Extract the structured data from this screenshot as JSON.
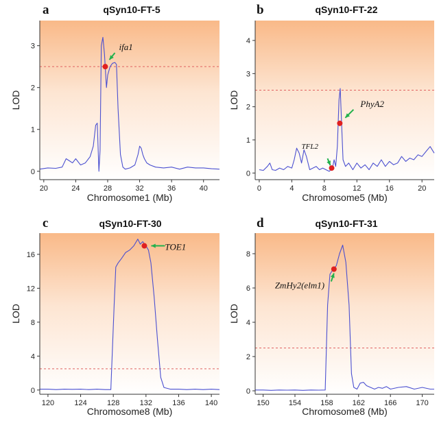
{
  "chart_data": [
    {
      "type": "line",
      "letter": "a",
      "title": "qSyn10-FT-5",
      "xlabel": "Chromosome1 (Mb)",
      "ylabel": "LOD",
      "xlim": [
        19.5,
        42
      ],
      "ylim": [
        -0.2,
        3.6
      ],
      "xticks": [
        20,
        24,
        28,
        32,
        36,
        40
      ],
      "yticks": [
        0,
        1,
        2,
        3
      ],
      "threshold": 2.5,
      "x": [
        19.5,
        20.5,
        21.5,
        22.3,
        22.8,
        23.2,
        23.6,
        24,
        24.6,
        25.2,
        25.8,
        26.2,
        26.5,
        26.7,
        26.9,
        27.05,
        27.2,
        27.4,
        27.6,
        27.75,
        27.85,
        28,
        28.3,
        28.6,
        28.9,
        29.1,
        29.3,
        29.6,
        29.9,
        30.2,
        30.8,
        31.4,
        31.8,
        32,
        32.2,
        32.4,
        32.6,
        32.9,
        33.3,
        34,
        35,
        36,
        37,
        38,
        39,
        40,
        41,
        42
      ],
      "y": [
        0.05,
        0.08,
        0.07,
        0.1,
        0.3,
        0.25,
        0.2,
        0.3,
        0.15,
        0.2,
        0.35,
        0.6,
        1.1,
        1.15,
        0,
        0.5,
        3.0,
        3.2,
        2.8,
        2.3,
        2.0,
        2.3,
        2.5,
        2.58,
        2.6,
        2.55,
        1.5,
        0.4,
        0.1,
        0.05,
        0.08,
        0.15,
        0.4,
        0.6,
        0.55,
        0.4,
        0.3,
        0.2,
        0.15,
        0.1,
        0.08,
        0.1,
        0.05,
        0.1,
        0.08,
        0.08,
        0.06,
        0.05
      ],
      "markers": [
        {
          "label": "ifa1",
          "x": 27.7,
          "y": 2.5
        }
      ]
    },
    {
      "type": "line",
      "letter": "b",
      "title": "qSyn10-FT-22",
      "xlabel": "Chromosome5 (Mb)",
      "ylabel": "LOD",
      "xlim": [
        -0.5,
        21.5
      ],
      "ylim": [
        -0.2,
        4.6
      ],
      "xticks": [
        0,
        4,
        8,
        12,
        16,
        20
      ],
      "yticks": [
        0,
        1,
        2,
        3,
        4
      ],
      "threshold": 2.5,
      "x": [
        0,
        0.5,
        1,
        1.3,
        1.6,
        2,
        2.5,
        3,
        3.5,
        4,
        4.3,
        4.6,
        4.9,
        5.2,
        5.5,
        5.8,
        6.2,
        6.6,
        7,
        7.4,
        7.8,
        8.2,
        8.6,
        9,
        9.2,
        9.4,
        9.6,
        9.8,
        9.95,
        10.1,
        10.3,
        10.6,
        11,
        11.5,
        12,
        12.5,
        13,
        13.5,
        14,
        14.5,
        15,
        15.5,
        16,
        16.5,
        17,
        17.5,
        18,
        18.5,
        19,
        19.5,
        20,
        20.5,
        21,
        21.5
      ],
      "y": [
        0.1,
        0.08,
        0.2,
        0.3,
        0.1,
        0.08,
        0.15,
        0.1,
        0.2,
        0.15,
        0.4,
        0.75,
        0.6,
        0.3,
        0.7,
        0.5,
        0.1,
        0.15,
        0.2,
        0.1,
        0.15,
        0.1,
        0.05,
        0.15,
        0.4,
        0.2,
        0.8,
        2.2,
        2.55,
        1.6,
        0.4,
        0.2,
        0.3,
        0.1,
        0.3,
        0.15,
        0.25,
        0.1,
        0.3,
        0.2,
        0.4,
        0.2,
        0.35,
        0.25,
        0.3,
        0.5,
        0.35,
        0.45,
        0.4,
        0.55,
        0.5,
        0.65,
        0.8,
        0.6
      ],
      "markers": [
        {
          "label": "PhyA2",
          "x": 9.9,
          "y": 1.5
        },
        {
          "label": "TFL2",
          "x": 8.9,
          "y": 0.15
        }
      ]
    },
    {
      "type": "line",
      "letter": "c",
      "title": "qSyn10-FT-30",
      "xlabel": "Chromosome8 (Mb)",
      "ylabel": "LOD",
      "xlim": [
        119,
        141
      ],
      "ylim": [
        -0.5,
        18.5
      ],
      "xticks": [
        120,
        124,
        128,
        132,
        136,
        140
      ],
      "yticks": [
        0,
        4,
        8,
        12,
        16
      ],
      "threshold": 2.5,
      "x": [
        119,
        120,
        121,
        122,
        123,
        124,
        125,
        126,
        127,
        127.7,
        128.1,
        128.3,
        128.6,
        129,
        129.5,
        130,
        130.5,
        131,
        131.3,
        131.6,
        132,
        132.3,
        132.6,
        133,
        133.4,
        133.8,
        134.2,
        135,
        136,
        137,
        138,
        139,
        140,
        141
      ],
      "y": [
        0.1,
        0.1,
        0.05,
        0.1,
        0.08,
        0.1,
        0.05,
        0.1,
        0.05,
        0.05,
        10,
        14.5,
        15,
        15.5,
        16.2,
        16.5,
        17,
        17.8,
        17.2,
        17.5,
        17,
        16.5,
        15,
        11,
        6,
        1.5,
        0.3,
        0.1,
        0.1,
        0.05,
        0.1,
        0.05,
        0.1,
        0.05
      ],
      "markers": [
        {
          "label": "TOE1",
          "x": 131.8,
          "y": 17.0
        }
      ]
    },
    {
      "type": "line",
      "letter": "d",
      "title": "qSyn10-FT-31",
      "xlabel": "Chromosome8 (Mb)",
      "ylabel": "LOD",
      "xlim": [
        149,
        171.5
      ],
      "ylim": [
        -0.2,
        9.2
      ],
      "xticks": [
        150,
        154,
        158,
        162,
        166,
        170
      ],
      "yticks": [
        0,
        2,
        4,
        6,
        8
      ],
      "threshold": 2.5,
      "x": [
        149,
        150,
        151,
        152,
        153,
        154,
        155,
        156,
        157,
        157.8,
        158.1,
        158.4,
        158.8,
        159.2,
        159.6,
        160,
        160.4,
        160.8,
        161.1,
        161.4,
        161.8,
        162.2,
        162.6,
        163,
        163.5,
        164,
        164.5,
        165,
        165.5,
        166,
        167,
        168,
        169,
        170,
        171,
        171.5
      ],
      "y": [
        0.05,
        0.05,
        0.03,
        0.05,
        0.04,
        0.05,
        0.03,
        0.05,
        0.04,
        0.05,
        5,
        6.8,
        7.1,
        7.3,
        8.0,
        8.5,
        7.5,
        5,
        1,
        0.2,
        0.1,
        0.45,
        0.5,
        0.3,
        0.2,
        0.1,
        0.2,
        0.15,
        0.25,
        0.1,
        0.2,
        0.25,
        0.1,
        0.2,
        0.1,
        0.1
      ],
      "markers": [
        {
          "label": "ZmHy2(elm1)",
          "x": 158.9,
          "y": 7.1
        }
      ]
    }
  ]
}
